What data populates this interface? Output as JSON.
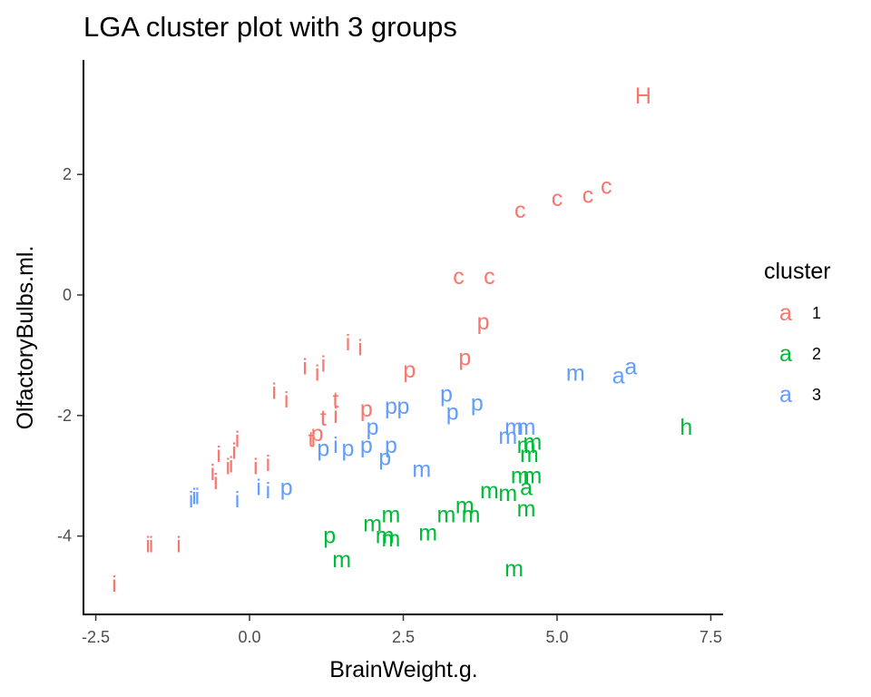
{
  "chart_data": {
    "type": "scatter",
    "title": "LGA cluster plot with 3 groups",
    "xlabel": "BrainWeight.g.",
    "ylabel": "OlfactoryBulbs.ml.",
    "xlim": [
      -2.7,
      7.7
    ],
    "ylim": [
      -5.3,
      3.9
    ],
    "xticks": [
      -2.5,
      0.0,
      2.5,
      5.0,
      7.5
    ],
    "xtick_labels": [
      "-2.5",
      "0.0",
      "2.5",
      "5.0",
      "7.5"
    ],
    "yticks": [
      -4,
      -2,
      0,
      2
    ],
    "ytick_labels": [
      "-4",
      "-2",
      "0",
      "2"
    ],
    "grid": false,
    "legend": {
      "title": "cluster",
      "position": "right",
      "key_glyph": "a",
      "items": [
        {
          "label": "1",
          "color": "#F8766D"
        },
        {
          "label": "2",
          "color": "#00BA38"
        },
        {
          "label": "3",
          "color": "#619CFF"
        }
      ]
    },
    "series": [
      {
        "name": "1",
        "color": "#F8766D",
        "points": [
          {
            "x": 6.4,
            "y": 3.3,
            "label": "H"
          },
          {
            "x": 4.4,
            "y": 1.4,
            "label": "c"
          },
          {
            "x": 5.0,
            "y": 1.6,
            "label": "c"
          },
          {
            "x": 5.5,
            "y": 1.65,
            "label": "c"
          },
          {
            "x": 5.8,
            "y": 1.8,
            "label": "c"
          },
          {
            "x": 3.4,
            "y": 0.3,
            "label": "c"
          },
          {
            "x": 3.9,
            "y": 0.3,
            "label": "c"
          },
          {
            "x": 3.8,
            "y": -0.45,
            "label": "p"
          },
          {
            "x": 3.5,
            "y": -1.05,
            "label": "p"
          },
          {
            "x": 2.6,
            "y": -1.25,
            "label": "p"
          },
          {
            "x": 1.9,
            "y": -1.9,
            "label": "p"
          },
          {
            "x": 1.1,
            "y": -2.3,
            "label": "p"
          },
          {
            "x": 1.6,
            "y": -0.8,
            "label": "i"
          },
          {
            "x": 1.8,
            "y": -0.88,
            "label": "i"
          },
          {
            "x": 0.9,
            "y": -1.2,
            "label": "i"
          },
          {
            "x": 1.2,
            "y": -1.15,
            "label": "i"
          },
          {
            "x": 1.1,
            "y": -1.3,
            "label": "i"
          },
          {
            "x": 0.4,
            "y": -1.6,
            "label": "i"
          },
          {
            "x": 0.6,
            "y": -1.75,
            "label": "i"
          },
          {
            "x": 1.4,
            "y": -1.75,
            "label": "t"
          },
          {
            "x": 1.2,
            "y": -2.05,
            "label": "t"
          },
          {
            "x": 1.4,
            "y": -2.0,
            "label": "i"
          },
          {
            "x": 1.0,
            "y": -2.4,
            "label": "t"
          },
          {
            "x": -0.2,
            "y": -2.4,
            "label": "i"
          },
          {
            "x": -0.25,
            "y": -2.6,
            "label": "i"
          },
          {
            "x": -0.5,
            "y": -2.65,
            "label": "i"
          },
          {
            "x": -0.35,
            "y": -2.85,
            "label": "i"
          },
          {
            "x": -0.3,
            "y": -2.82,
            "label": "i"
          },
          {
            "x": -0.6,
            "y": -2.95,
            "label": "i"
          },
          {
            "x": -0.55,
            "y": -3.1,
            "label": "i"
          },
          {
            "x": 0.1,
            "y": -2.85,
            "label": "i"
          },
          {
            "x": 0.3,
            "y": -2.8,
            "label": "i"
          },
          {
            "x": -1.65,
            "y": -4.15,
            "label": "i"
          },
          {
            "x": -1.6,
            "y": -4.15,
            "label": "i"
          },
          {
            "x": -1.15,
            "y": -4.15,
            "label": "i"
          },
          {
            "x": -2.2,
            "y": -4.8,
            "label": "i"
          }
        ]
      },
      {
        "name": "2",
        "color": "#00BA38",
        "points": [
          {
            "x": 7.1,
            "y": -2.2,
            "label": "h"
          },
          {
            "x": 4.5,
            "y": -2.5,
            "label": "m"
          },
          {
            "x": 4.6,
            "y": -2.45,
            "label": "m"
          },
          {
            "x": 4.55,
            "y": -2.65,
            "label": "m"
          },
          {
            "x": 4.4,
            "y": -3.0,
            "label": "m"
          },
          {
            "x": 4.6,
            "y": -3.0,
            "label": "m"
          },
          {
            "x": 4.5,
            "y": -3.2,
            "label": "a"
          },
          {
            "x": 3.9,
            "y": -3.25,
            "label": "m"
          },
          {
            "x": 4.2,
            "y": -3.3,
            "label": "m"
          },
          {
            "x": 3.5,
            "y": -3.5,
            "label": "m"
          },
          {
            "x": 4.5,
            "y": -3.55,
            "label": "m"
          },
          {
            "x": 3.6,
            "y": -3.65,
            "label": "m"
          },
          {
            "x": 3.2,
            "y": -3.65,
            "label": "m"
          },
          {
            "x": 2.3,
            "y": -3.65,
            "label": "m"
          },
          {
            "x": 2.0,
            "y": -3.8,
            "label": "m"
          },
          {
            "x": 2.2,
            "y": -4.0,
            "label": "m"
          },
          {
            "x": 2.3,
            "y": -4.05,
            "label": "m"
          },
          {
            "x": 2.9,
            "y": -3.95,
            "label": "m"
          },
          {
            "x": 1.3,
            "y": -4.0,
            "label": "p"
          },
          {
            "x": 1.5,
            "y": -4.4,
            "label": "m"
          },
          {
            "x": 4.3,
            "y": -4.55,
            "label": "m"
          }
        ]
      },
      {
        "name": "3",
        "color": "#619CFF",
        "points": [
          {
            "x": 6.2,
            "y": -1.2,
            "label": "a"
          },
          {
            "x": 6.0,
            "y": -1.35,
            "label": "a"
          },
          {
            "x": 5.3,
            "y": -1.3,
            "label": "m"
          },
          {
            "x": 4.3,
            "y": -2.2,
            "label": "m"
          },
          {
            "x": 4.5,
            "y": -2.2,
            "label": "m"
          },
          {
            "x": 4.2,
            "y": -2.35,
            "label": "m"
          },
          {
            "x": 2.8,
            "y": -2.9,
            "label": "m"
          },
          {
            "x": 3.2,
            "y": -1.65,
            "label": "p"
          },
          {
            "x": 3.7,
            "y": -1.8,
            "label": "p"
          },
          {
            "x": 3.3,
            "y": -1.95,
            "label": "p"
          },
          {
            "x": 2.3,
            "y": -1.85,
            "label": "p"
          },
          {
            "x": 2.5,
            "y": -1.85,
            "label": "p"
          },
          {
            "x": 2.0,
            "y": -2.2,
            "label": "p"
          },
          {
            "x": 2.3,
            "y": -2.5,
            "label": "p"
          },
          {
            "x": 1.9,
            "y": -2.5,
            "label": "p"
          },
          {
            "x": 1.6,
            "y": -2.55,
            "label": "p"
          },
          {
            "x": 1.2,
            "y": -2.55,
            "label": "p"
          },
          {
            "x": 1.4,
            "y": -2.5,
            "label": "i"
          },
          {
            "x": 2.2,
            "y": -2.7,
            "label": "p"
          },
          {
            "x": 0.6,
            "y": -3.2,
            "label": "p"
          },
          {
            "x": 0.3,
            "y": -3.25,
            "label": "i"
          },
          {
            "x": 0.15,
            "y": -3.2,
            "label": "i"
          },
          {
            "x": -0.2,
            "y": -3.4,
            "label": "i"
          },
          {
            "x": -0.9,
            "y": -3.35,
            "label": "i"
          },
          {
            "x": -0.95,
            "y": -3.4,
            "label": "i"
          },
          {
            "x": -0.85,
            "y": -3.35,
            "label": "i"
          }
        ]
      }
    ]
  }
}
